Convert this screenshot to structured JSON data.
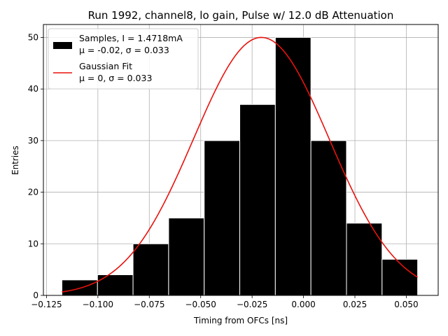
{
  "chart_data": {
    "type": "bar",
    "title": "Run 1992, channel8, lo gain, Pulse w/ 12.0 dB Attenuation",
    "xlabel": "Timing from OFCs [ns]",
    "ylabel": "Entries",
    "xlim": [
      -0.1265,
      0.0655
    ],
    "ylim": [
      0,
      52.5
    ],
    "x_ticks": [
      -0.125,
      -0.1,
      -0.075,
      -0.05,
      -0.025,
      0.0,
      0.025,
      0.05
    ],
    "x_tick_labels": [
      "−0.125",
      "−0.100",
      "−0.075",
      "−0.050",
      "−0.025",
      "0.000",
      "0.025",
      "0.050"
    ],
    "y_ticks": [
      0,
      10,
      20,
      30,
      40,
      50
    ],
    "y_tick_labels": [
      "0",
      "10",
      "20",
      "30",
      "40",
      "50"
    ],
    "grid": true,
    "legend_position": "top-left",
    "histogram": {
      "name": "Samples, I = 1.4718mA",
      "name_line2": "μ = -0.02, σ = 0.033",
      "color": "#000000",
      "edge_color": "#ffffff",
      "bin_edges": [
        -0.1175,
        -0.1002,
        -0.0829,
        -0.0656,
        -0.0483,
        -0.031,
        -0.0137,
        0.0036,
        0.0209,
        0.0382,
        0.0555
      ],
      "counts": [
        3,
        4,
        10,
        15,
        30,
        37,
        50,
        30,
        14,
        7
      ]
    },
    "fit": {
      "name": "Gaussian Fit",
      "name_line2": "μ = 0, σ = 0.033",
      "color": "#e8120c",
      "mu": -0.0205,
      "sigma": 0.033,
      "amplitude": 50,
      "x_range": [
        -0.1175,
        0.0555
      ]
    }
  }
}
